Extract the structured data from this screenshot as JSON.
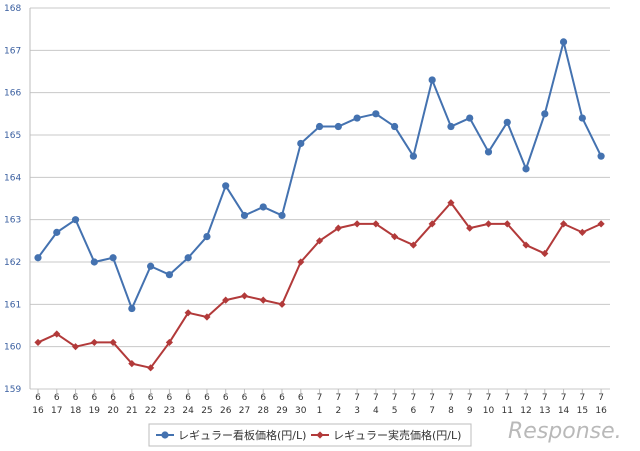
{
  "chart_data": {
    "type": "line",
    "x": [
      {
        "month": "6",
        "day": "16"
      },
      {
        "month": "6",
        "day": "17"
      },
      {
        "month": "6",
        "day": "18"
      },
      {
        "month": "6",
        "day": "19"
      },
      {
        "month": "6",
        "day": "20"
      },
      {
        "month": "6",
        "day": "21"
      },
      {
        "month": "6",
        "day": "22"
      },
      {
        "month": "6",
        "day": "23"
      },
      {
        "month": "6",
        "day": "24"
      },
      {
        "month": "6",
        "day": "25"
      },
      {
        "month": "6",
        "day": "26"
      },
      {
        "month": "6",
        "day": "27"
      },
      {
        "month": "6",
        "day": "28"
      },
      {
        "month": "6",
        "day": "29"
      },
      {
        "month": "6",
        "day": "30"
      },
      {
        "month": "7",
        "day": "1"
      },
      {
        "month": "7",
        "day": "2"
      },
      {
        "month": "7",
        "day": "3"
      },
      {
        "month": "7",
        "day": "4"
      },
      {
        "month": "7",
        "day": "5"
      },
      {
        "month": "7",
        "day": "6"
      },
      {
        "month": "7",
        "day": "7"
      },
      {
        "month": "7",
        "day": "8"
      },
      {
        "month": "7",
        "day": "9"
      },
      {
        "month": "7",
        "day": "10"
      },
      {
        "month": "7",
        "day": "11"
      },
      {
        "month": "7",
        "day": "12"
      },
      {
        "month": "7",
        "day": "13"
      },
      {
        "month": "7",
        "day": "14"
      },
      {
        "month": "7",
        "day": "15"
      },
      {
        "month": "7",
        "day": "16"
      }
    ],
    "ylim": [
      159,
      168
    ],
    "yticks": [
      159,
      160,
      161,
      162,
      163,
      164,
      165,
      166,
      167,
      168
    ],
    "grid": true,
    "legend_position": "bottom",
    "series": [
      {
        "name": "レギュラー看板価格(円/L)",
        "color": "#4472b0",
        "marker": "circle",
        "values": [
          162.1,
          162.7,
          163.0,
          162.0,
          162.1,
          160.9,
          161.9,
          161.7,
          162.1,
          162.6,
          163.8,
          163.1,
          163.3,
          163.1,
          164.8,
          165.2,
          165.2,
          165.4,
          165.5,
          165.2,
          164.5,
          166.3,
          165.2,
          165.4,
          164.6,
          165.3,
          164.2,
          165.5,
          167.2,
          165.4,
          164.5
        ]
      },
      {
        "name": "レギュラー実売価格(円/L)",
        "color": "#b23a3a",
        "marker": "diamond",
        "values": [
          160.1,
          160.3,
          160.0,
          160.1,
          160.1,
          159.6,
          159.5,
          160.1,
          160.8,
          160.7,
          161.1,
          161.2,
          161.1,
          161.0,
          162.0,
          162.5,
          162.8,
          162.9,
          162.9,
          162.6,
          162.4,
          162.9,
          163.4,
          162.8,
          162.9,
          162.9,
          162.4,
          162.2,
          162.9,
          162.7,
          162.9
        ]
      }
    ]
  },
  "watermark": "Response."
}
